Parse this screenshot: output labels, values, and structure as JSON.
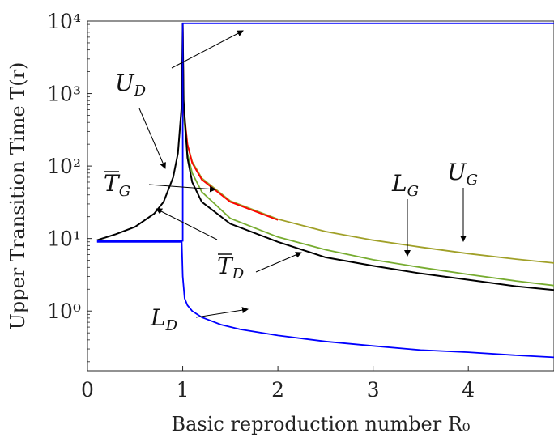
{
  "chart_data": {
    "type": "line",
    "xlabel": "Basic reproduction number R₀",
    "ylabel": "Upper Transition Time T̅(r)",
    "y_scale": "log",
    "xlim": [
      0,
      4.9
    ],
    "ylim": [
      0.15,
      10000
    ],
    "grid": false,
    "x_ticks": [
      0,
      1,
      2,
      3,
      4
    ],
    "x_tick_labels": [
      "0",
      "1",
      "2",
      "3",
      "4"
    ],
    "y_ticks": [
      1,
      10,
      100,
      1000,
      10000
    ],
    "y_tick_labels": [
      "10⁰",
      "10¹",
      "10²",
      "10³",
      "10⁴"
    ],
    "series_colors": {
      "U_D": "#0000ff",
      "L_D": "#0000ff",
      "T_D": "#000000",
      "T_G": "#ff0000",
      "U_G": "#a0a028",
      "L_G": "#77ac30"
    },
    "series": [
      {
        "key": "U_D",
        "x": [
          0.1,
          1.0,
          1.0,
          4.9
        ],
        "values": [
          9.3,
          9.3,
          9300,
          9300
        ]
      },
      {
        "key": "L_D",
        "x": [
          0.1,
          0.99,
          1.0,
          1.02,
          1.05,
          1.1,
          1.2,
          1.4,
          1.6,
          2.0,
          2.5,
          3.0,
          3.5,
          4.0,
          4.5,
          4.9
        ],
        "values": [
          9.0,
          9.0,
          3.0,
          1.5,
          1.2,
          1.0,
          0.82,
          0.65,
          0.56,
          0.46,
          0.38,
          0.33,
          0.29,
          0.27,
          0.245,
          0.23
        ]
      },
      {
        "key": "T_D",
        "x": [
          0.1,
          0.3,
          0.5,
          0.7,
          0.8,
          0.9,
          0.95,
          0.99,
          1.0,
          1.01,
          1.05,
          1.1,
          1.2,
          1.5,
          2.0,
          2.5,
          3.0,
          3.5,
          4.0,
          4.5,
          4.9
        ],
        "values": [
          9.5,
          11.5,
          14.5,
          22,
          32,
          70,
          150,
          700,
          9300,
          800,
          130,
          60,
          32,
          16,
          9.0,
          5.5,
          4.2,
          3.3,
          2.7,
          2.2,
          1.95
        ]
      },
      {
        "key": "T_G",
        "x": [
          1.0,
          1.01,
          1.05,
          1.1,
          1.2,
          1.5,
          2.0
        ],
        "values": [
          9300,
          650,
          200,
          110,
          65,
          32,
          18
        ]
      },
      {
        "key": "U_G",
        "x": [
          1.0,
          1.01,
          1.05,
          1.1,
          1.2,
          1.5,
          2.0,
          2.5,
          3.0,
          3.5,
          4.0,
          4.5,
          4.9
        ],
        "values": [
          9300,
          600,
          200,
          115,
          68,
          33,
          18.5,
          12.5,
          9.5,
          7.6,
          6.2,
          5.2,
          4.6
        ]
      },
      {
        "key": "L_G",
        "x": [
          1.0,
          1.01,
          1.05,
          1.1,
          1.2,
          1.5,
          2.0,
          2.5,
          3.0,
          3.5,
          4.0,
          4.5,
          4.9
        ],
        "values": [
          9300,
          500,
          150,
          80,
          44,
          19,
          10.5,
          7.0,
          5.1,
          4.0,
          3.2,
          2.6,
          2.25
        ]
      }
    ],
    "annotations": [
      {
        "base": "U",
        "sub": "D",
        "bar": false
      },
      {
        "base": "T",
        "sub": "G",
        "bar": true
      },
      {
        "base": "L",
        "sub": "G",
        "bar": false
      },
      {
        "base": "U",
        "sub": "G",
        "bar": false
      },
      {
        "base": "T",
        "sub": "D",
        "bar": true
      },
      {
        "base": "L",
        "sub": "D",
        "bar": false
      }
    ]
  }
}
